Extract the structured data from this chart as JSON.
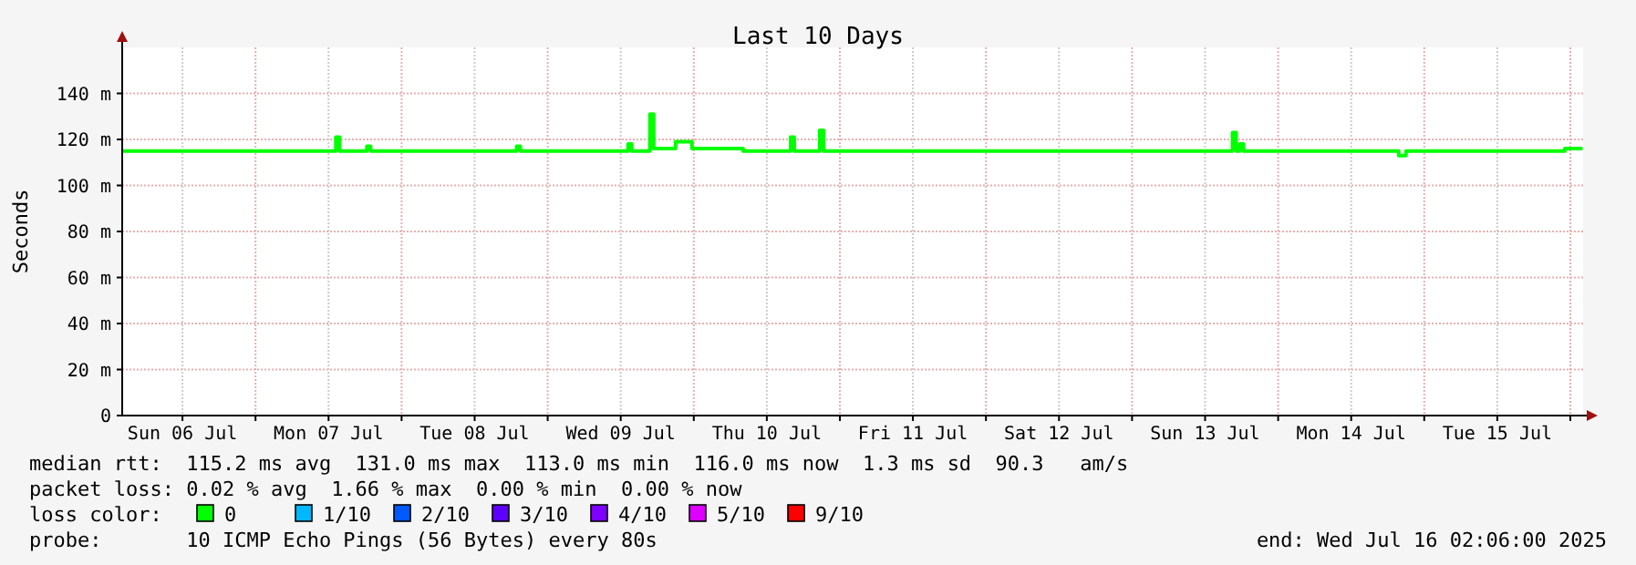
{
  "chart_data": {
    "type": "line",
    "title": "Last 10 Days",
    "ylabel": "Seconds",
    "legend_title": "loss color:",
    "legend": "bottom",
    "grid": true,
    "marker": "none",
    "line_style": "solid",
    "xlim": [
      "2025-07-06T02:06",
      "2025-07-16T02:06"
    ],
    "xticks": [
      {
        "value": "2025-07-06T12:00",
        "label": "Sun 06 Jul"
      },
      {
        "value": "2025-07-07T00:00",
        "label": null
      },
      {
        "value": "2025-07-07T12:00",
        "label": "Mon 07 Jul"
      },
      {
        "value": "2025-07-08T00:00",
        "label": null
      },
      {
        "value": "2025-07-08T12:00",
        "label": "Tue 08 Jul"
      },
      {
        "value": "2025-07-09T00:00",
        "label": null
      },
      {
        "value": "2025-07-09T12:00",
        "label": "Wed 09 Jul"
      },
      {
        "value": "2025-07-10T00:00",
        "label": null
      },
      {
        "value": "2025-07-10T12:00",
        "label": "Thu 10 Jul"
      },
      {
        "value": "2025-07-11T00:00",
        "label": null
      },
      {
        "value": "2025-07-11T12:00",
        "label": "Fri 11 Jul"
      },
      {
        "value": "2025-07-12T00:00",
        "label": null
      },
      {
        "value": "2025-07-12T12:00",
        "label": "Sat 12 Jul"
      },
      {
        "value": "2025-07-13T00:00",
        "label": null
      },
      {
        "value": "2025-07-13T12:00",
        "label": "Sun 13 Jul"
      },
      {
        "value": "2025-07-14T00:00",
        "label": null
      },
      {
        "value": "2025-07-14T12:00",
        "label": "Mon 14 Jul"
      },
      {
        "value": "2025-07-15T00:00",
        "label": null
      },
      {
        "value": "2025-07-15T12:00",
        "label": "Tue 15 Jul"
      },
      {
        "value": "2025-07-16T00:00",
        "label": null
      }
    ],
    "ylim": [
      0,
      160
    ],
    "yticks": [
      0,
      {
        "value": 20,
        "label": "20 m"
      },
      {
        "value": 40,
        "label": "40 m"
      },
      {
        "value": 60,
        "label": "60 m"
      },
      {
        "value": 80,
        "label": "80 m"
      },
      {
        "value": 100,
        "label": "100 m"
      },
      {
        "value": 120,
        "label": "120 m"
      },
      {
        "value": 140,
        "label": "140 m"
      }
    ],
    "series": [
      {
        "name": "0",
        "color": "#00ff00",
        "x": [
          "2025-07-06T02:06",
          "2025-07-07T12:36",
          "2025-07-07T13:12",
          "2025-07-07T13:48",
          "2025-07-07T18:00",
          "2025-07-07T18:18",
          "2025-07-07T18:54",
          "2025-07-08T18:54",
          "2025-07-08T19:30",
          "2025-07-09T12:54",
          "2025-07-09T13:12",
          "2025-07-09T13:48",
          "2025-07-09T16:30",
          "2025-07-09T16:48",
          "2025-07-09T17:24",
          "2025-07-09T20:24",
          "2025-07-09T21:00",
          "2025-07-09T23:24",
          "2025-07-09T23:42",
          "2025-07-10T07:30",
          "2025-07-10T08:06",
          "2025-07-10T15:36",
          "2025-07-10T15:54",
          "2025-07-10T16:30",
          "2025-07-10T20:24",
          "2025-07-10T20:42",
          "2025-07-10T21:18",
          "2025-07-13T16:12",
          "2025-07-13T16:30",
          "2025-07-13T17:06",
          "2025-07-13T17:42",
          "2025-07-13T18:18",
          "2025-07-14T18:36",
          "2025-07-14T19:48",
          "2025-07-14T21:00",
          "2025-07-15T22:30",
          "2025-07-15T23:06",
          "2025-07-16T02:00"
        ],
        "values": [
          115,
          115,
          121,
          115,
          115,
          117,
          115,
          117,
          115,
          115,
          118,
          115,
          115,
          131,
          116,
          116,
          119,
          119,
          116,
          116,
          115,
          115,
          121,
          115,
          115,
          124,
          115,
          115,
          123,
          115,
          118,
          115,
          115,
          113,
          115,
          115,
          116,
          116
        ]
      },
      {
        "name": "1/10",
        "color": "#00b8ff"
      },
      {
        "name": "2/10",
        "color": "#0059ff"
      },
      {
        "name": "3/10",
        "color": "#5e00ff"
      },
      {
        "name": "4/10",
        "color": "#7e00ff"
      },
      {
        "name": "5/10",
        "color": "#dd00ff"
      },
      {
        "name": "9/10",
        "color": "#ff0000"
      }
    ],
    "annotations": [
      "median rtt:  115.2 ms avg  131.0 ms max  113.0 ms min  116.0 ms now  1.3 ms sd  90.3   am/s",
      "packet loss: 0.02 % avg  1.66 % max  0.00 % min  0.00 % now",
      "probe:       10 ICMP Echo Pings (56 Bytes) every 80s",
      "end: Wed Jul 16 02:06:00 2025"
    ]
  }
}
